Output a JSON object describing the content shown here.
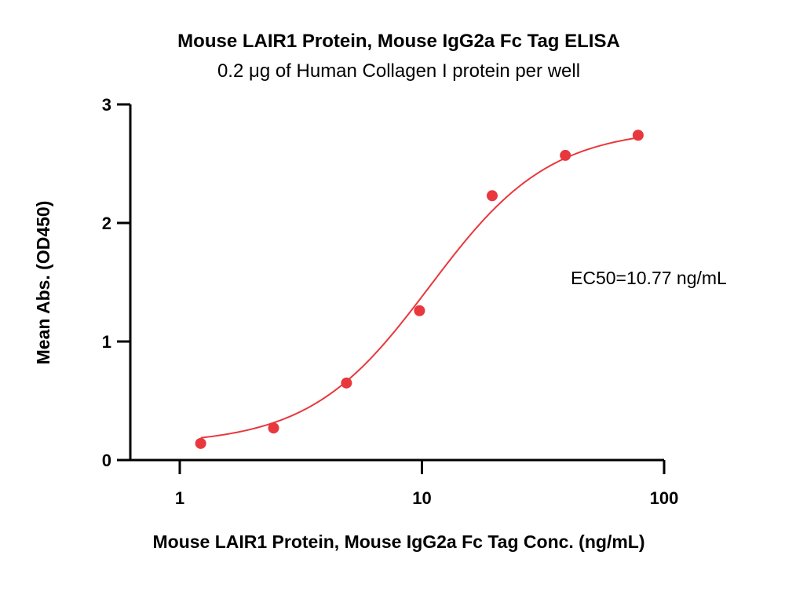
{
  "chart_data": {
    "type": "scatter",
    "title": "Mouse LAIR1 Protein, Mouse IgG2a Fc Tag ELISA",
    "subtitle": "0.2 μg of Human Collagen I protein per well",
    "xlabel": "Mouse LAIR1 Protein, Mouse IgG2a Fc Tag Conc. (ng/mL)",
    "ylabel": "Mean Abs. (OD450)",
    "xscale": "log",
    "xlim": [
      0.5,
      100
    ],
    "ylim": [
      0,
      3
    ],
    "xticks": [
      1,
      10,
      100
    ],
    "xtick_labels": [
      "1",
      "10",
      "100"
    ],
    "yticks": [
      0,
      1,
      2,
      3
    ],
    "ytick_labels": [
      "0",
      "1",
      "2",
      "3"
    ],
    "grid": false,
    "series": [
      {
        "x": [
          1.22,
          2.44,
          4.88,
          9.77,
          19.5,
          39.1,
          78.1
        ],
        "y": [
          0.14,
          0.27,
          0.65,
          1.26,
          2.23,
          2.57,
          2.74
        ],
        "color": "#e8383d",
        "fit": "4PL sigmoid"
      }
    ],
    "fit_params": {
      "bottom": 0.13,
      "top": 2.8,
      "ec50": 10.77,
      "hill": 1.75
    },
    "annotations": [
      {
        "text": "EC50=10.77 ng/mL"
      }
    ]
  }
}
